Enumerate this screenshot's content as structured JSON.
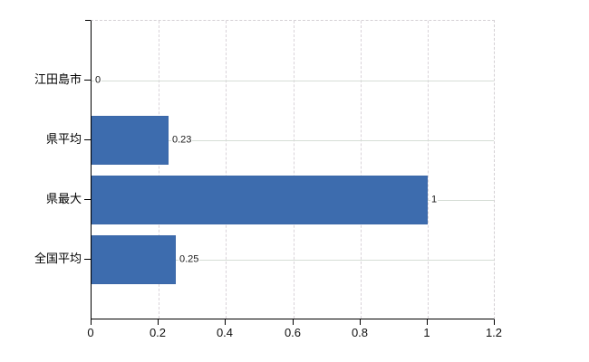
{
  "chart_data": {
    "type": "bar",
    "orientation": "horizontal",
    "title": "",
    "xlabel": "",
    "ylabel": "",
    "categories": [
      "江田島市",
      "県平均",
      "県最大",
      "全国平均"
    ],
    "values": [
      0,
      0.23,
      1,
      0.25
    ],
    "value_labels": [
      "0",
      "0.23",
      "1",
      "0.25"
    ],
    "xlim": [
      0,
      1.2
    ],
    "xticks": [
      0,
      0.2,
      0.4,
      0.6,
      0.8,
      1,
      1.2
    ],
    "xtick_labels": [
      "0",
      "0.2",
      "0.4",
      "0.6",
      "0.8",
      "1",
      "1.2"
    ],
    "grid": "on",
    "legend": "none",
    "bar_color": "#3d6cae",
    "axis_color": "#000000",
    "gridline_color": "#d8d8d8",
    "background_color": "#ffffff"
  }
}
